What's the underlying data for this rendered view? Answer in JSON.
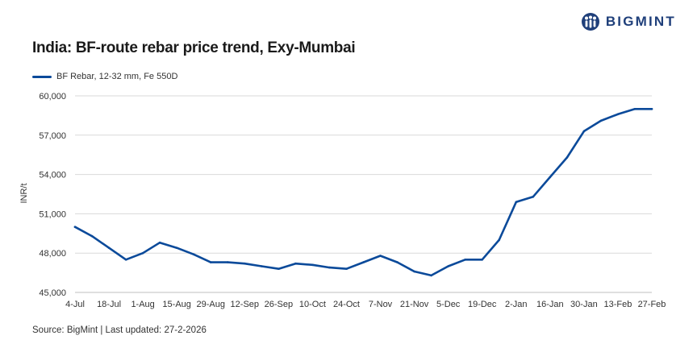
{
  "header": {
    "title": "India: BF-route rebar price trend, Exy-Mumbai",
    "logo_text": "BIGMINT"
  },
  "footer": {
    "source": "Source: BigMint | Last updated: 27-2-2026"
  },
  "colors": {
    "series": "#0b4a9a",
    "brand": "#1f3f7a",
    "grid": "#d9d9d9"
  },
  "chart_data": {
    "type": "line",
    "title": "India: BF-route rebar price trend, Exy-Mumbai",
    "xlabel": "",
    "ylabel": "INR/t",
    "ylim": [
      45000,
      60000
    ],
    "yticks": [
      45000,
      48000,
      51000,
      54000,
      57000,
      60000
    ],
    "ytick_labels": [
      "45,000",
      "48,000",
      "51,000",
      "54,000",
      "57,000",
      "60,000"
    ],
    "xtick_labels": [
      "4-Jul",
      "18-Jul",
      "1-Aug",
      "15-Aug",
      "29-Aug",
      "12-Sep",
      "26-Sep",
      "10-Oct",
      "24-Oct",
      "7-Nov",
      "21-Nov",
      "5-Dec",
      "19-Dec",
      "2-Jan",
      "16-Jan",
      "30-Jan",
      "13-Feb",
      "27-Feb"
    ],
    "grid": true,
    "legend_position": "top-left",
    "series": [
      {
        "name": "BF Rebar, 12-32 mm, Fe 550D",
        "values": [
          50000,
          49300,
          48400,
          47500,
          48000,
          48800,
          48400,
          47900,
          47300,
          47300,
          47200,
          47000,
          46800,
          47200,
          47100,
          46900,
          46800,
          47300,
          47800,
          47300,
          46600,
          46300,
          47000,
          47500,
          47500,
          49000,
          51900,
          52300,
          53800,
          55300,
          57300,
          58100,
          58600,
          59000,
          59000
        ]
      }
    ]
  }
}
